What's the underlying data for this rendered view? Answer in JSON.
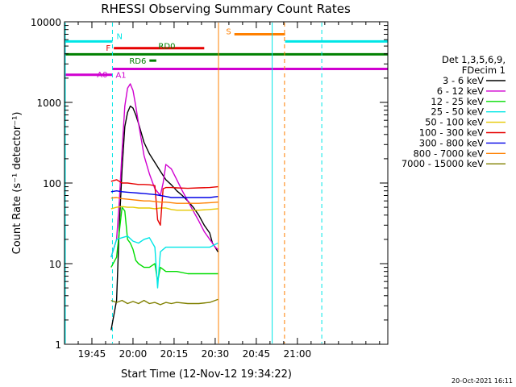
{
  "chart_data": {
    "type": "line",
    "title": "RHESSI Observing Summary Count Rates",
    "xlabel": "Start Time (12-Nov-12 19:34:22)",
    "ylabel": "Count Rate (s⁻¹ detector⁻¹)",
    "y_scale": "log",
    "ylim": [
      1,
      10000
    ],
    "xlim": [
      35,
      153
    ],
    "x_units": "minutes after 19:00",
    "x_ticks": [
      45,
      60,
      75,
      90,
      105,
      120
    ],
    "x_tick_labels": [
      "19:45",
      "20:00",
      "20:15",
      "20:30",
      "20:45",
      "21:00"
    ],
    "y_ticks": [
      1,
      10,
      100,
      1000,
      10000
    ],
    "y_tick_labels": [
      "1",
      "10",
      "100",
      "1000",
      "10000"
    ],
    "grid": false,
    "legend_position": "right",
    "legend_header": [
      "Det 1,3,5,6,9,",
      "FDecim 1"
    ],
    "series": [
      {
        "name": "3 - 6 keV",
        "color": "#000000",
        "x": [
          52,
          54,
          55,
          56,
          57,
          58,
          59,
          60,
          61,
          62,
          63,
          64,
          66,
          68,
          70,
          72,
          74,
          76,
          78,
          80,
          82,
          84,
          86,
          88,
          89,
          90,
          91
        ],
        "values": [
          1.5,
          3.5,
          30,
          150,
          500,
          750,
          900,
          850,
          700,
          550,
          420,
          320,
          230,
          180,
          140,
          110,
          95,
          80,
          70,
          60,
          50,
          40,
          30,
          24,
          18,
          16,
          14
        ]
      },
      {
        "name": "6 - 12 keV",
        "color": "#d000d0",
        "x": [
          52,
          54,
          55,
          56,
          57,
          58,
          59,
          60,
          61,
          62,
          63,
          64,
          66,
          68,
          70,
          71,
          72,
          74,
          76,
          78,
          80,
          82,
          84,
          86,
          88,
          89,
          90,
          91
        ],
        "values": [
          12,
          20,
          60,
          250,
          900,
          1500,
          1700,
          1400,
          900,
          550,
          350,
          220,
          130,
          85,
          70,
          100,
          170,
          150,
          110,
          80,
          60,
          45,
          34,
          25,
          20,
          18,
          16,
          15
        ]
      },
      {
        "name": "12 - 25 keV",
        "color": "#00dd00",
        "x": [
          52,
          54,
          55,
          56,
          57,
          58,
          59,
          60,
          61,
          62,
          64,
          66,
          68,
          69,
          70,
          72,
          74,
          76,
          80,
          84,
          88,
          91
        ],
        "values": [
          9,
          12,
          25,
          50,
          45,
          20,
          18,
          15,
          11,
          10,
          9,
          9,
          10,
          6,
          9,
          8,
          8,
          8,
          7.5,
          7.5,
          7.5,
          7.5
        ]
      },
      {
        "name": "25 - 50 keV",
        "color": "#00e6e6",
        "x": [
          52,
          54,
          56,
          58,
          60,
          62,
          64,
          66,
          68,
          69,
          70,
          71,
          72,
          74,
          76,
          80,
          84,
          88,
          91
        ],
        "values": [
          12,
          20,
          21,
          22,
          19,
          18,
          20,
          21,
          16,
          5,
          14,
          15,
          16,
          16,
          16,
          16,
          16,
          16,
          18
        ]
      },
      {
        "name": "50 - 100 keV",
        "color": "#e6c800",
        "x": [
          52,
          54,
          56,
          58,
          60,
          62,
          64,
          66,
          68,
          70,
          72,
          74,
          76,
          80,
          84,
          88,
          91
        ],
        "values": [
          48,
          50,
          51,
          50,
          50,
          49,
          49,
          49,
          48,
          49,
          49,
          47,
          46,
          46,
          46,
          47,
          48
        ]
      },
      {
        "name": "100 - 300 keV",
        "color": "#e60000",
        "x": [
          52,
          54,
          56,
          58,
          60,
          62,
          64,
          66,
          68,
          69,
          70,
          71,
          72,
          74,
          76,
          80,
          84,
          88,
          91
        ],
        "values": [
          105,
          110,
          100,
          100,
          98,
          96,
          96,
          95,
          93,
          35,
          30,
          85,
          88,
          88,
          87,
          86,
          87,
          88,
          90
        ]
      },
      {
        "name": "300 - 800 keV",
        "color": "#0000e6",
        "x": [
          52,
          54,
          56,
          58,
          60,
          62,
          64,
          66,
          68,
          70,
          72,
          74,
          76,
          80,
          84,
          88,
          91
        ],
        "values": [
          78,
          80,
          78,
          77,
          76,
          75,
          74,
          73,
          72,
          70,
          68,
          66,
          66,
          66,
          66,
          66,
          68
        ]
      },
      {
        "name": "800 - 7000 keV",
        "color": "#ff8000",
        "x": [
          52,
          54,
          56,
          58,
          60,
          62,
          64,
          66,
          68,
          70,
          72,
          74,
          76,
          80,
          84,
          88,
          91
        ],
        "values": [
          65,
          66,
          64,
          63,
          62,
          61,
          60,
          60,
          59,
          58,
          58,
          57,
          56,
          56,
          56,
          57,
          58
        ]
      },
      {
        "name": "7000 - 15000 keV",
        "color": "#808000",
        "x": [
          52,
          54,
          56,
          58,
          60,
          62,
          64,
          66,
          68,
          70,
          72,
          74,
          76,
          80,
          84,
          88,
          91
        ],
        "values": [
          3.5,
          3.3,
          3.5,
          3.2,
          3.4,
          3.2,
          3.5,
          3.2,
          3.3,
          3.1,
          3.3,
          3.2,
          3.3,
          3.2,
          3.2,
          3.3,
          3.6
        ]
      }
    ],
    "vertical_lines": [
      {
        "x": 35.3,
        "color": "#00e6e6",
        "style": "solid"
      },
      {
        "x": 52.5,
        "color": "#00e6e6",
        "style": "dashed"
      },
      {
        "x": 91.2,
        "color": "#ff8000",
        "style": "solid"
      },
      {
        "x": 110.8,
        "color": "#00e6e6",
        "style": "solid"
      },
      {
        "x": 115.3,
        "color": "#ff8000",
        "style": "dashed"
      },
      {
        "x": 128.9,
        "color": "#00e6e6",
        "style": "dashed"
      }
    ],
    "flag_bars": [
      {
        "label": "N",
        "color": "#00e6e6",
        "segments": [
          [
            35,
            52.5
          ],
          [
            115.5,
            153
          ]
        ],
        "level": 5700
      },
      {
        "label": "S",
        "color": "#ff8000",
        "segments": [
          [
            97,
            115.5
          ]
        ],
        "level": 7000
      },
      {
        "label": "F",
        "color": "#e60000",
        "segments": [
          [
            53,
            86
          ]
        ],
        "level": 4700
      },
      {
        "label": "RD0",
        "color": "#008000",
        "segments": [
          [
            35,
            153
          ]
        ],
        "level": 3950
      },
      {
        "label": "RD6",
        "color": "#008000",
        "segments": [
          [
            66,
            68.5
          ]
        ],
        "level": 3300
      },
      {
        "label": "A0",
        "color": "#d000d0",
        "segments": [
          [
            35,
            52.5
          ]
        ],
        "level": 2200
      },
      {
        "label": "A1",
        "color": "#d000d0",
        "segments": [
          [
            52.5,
            153
          ]
        ],
        "level": 2600
      }
    ],
    "timestamp": "20-Oct-2021 16:11"
  }
}
